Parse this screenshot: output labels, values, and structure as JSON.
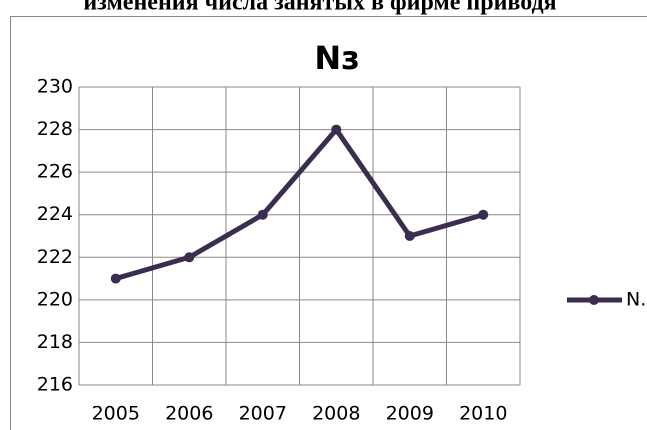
{
  "caption": "изменения числа занятых в фирме приводя",
  "chart_data": {
    "type": "line",
    "title": "Nз",
    "categories": [
      "2005",
      "2006",
      "2007",
      "2008",
      "2009",
      "2010"
    ],
    "series": [
      {
        "name": "N.",
        "color": "#3b2d4f",
        "values": [
          221,
          222,
          224,
          228,
          223,
          224
        ]
      }
    ],
    "ylim": [
      216,
      230
    ],
    "yticks": [
      216,
      218,
      220,
      222,
      224,
      226,
      228,
      230
    ],
    "grid": true,
    "legend": "right"
  }
}
